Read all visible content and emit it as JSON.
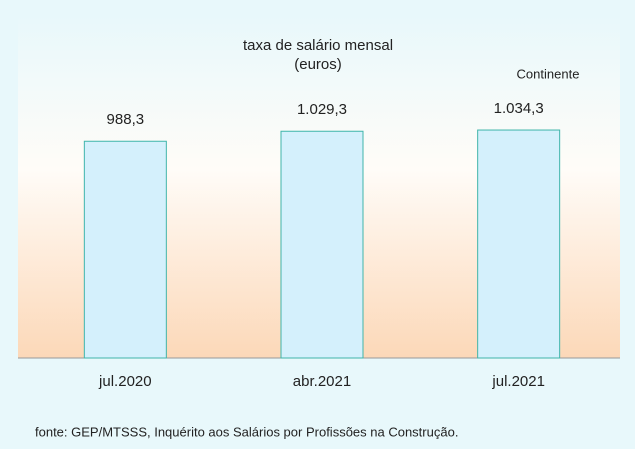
{
  "chart_data": {
    "type": "bar",
    "title": "taxa de salário mensal",
    "subtitle": "(euros)",
    "annotation": "Continente",
    "source": "fonte: GEP/MTSSS, Inquérito aos Salários por Profissões na Construção.",
    "categories": [
      "jul.2020",
      "abr.2021",
      "jul.2021"
    ],
    "values": [
      988.3,
      1029.3,
      1034.3
    ],
    "value_labels": [
      "988,3",
      "1.029,3",
      "1.034,3"
    ],
    "color": "#d4f0fc",
    "edge_color": "#3fb5aa",
    "ylim": [
      100,
      1100
    ]
  }
}
